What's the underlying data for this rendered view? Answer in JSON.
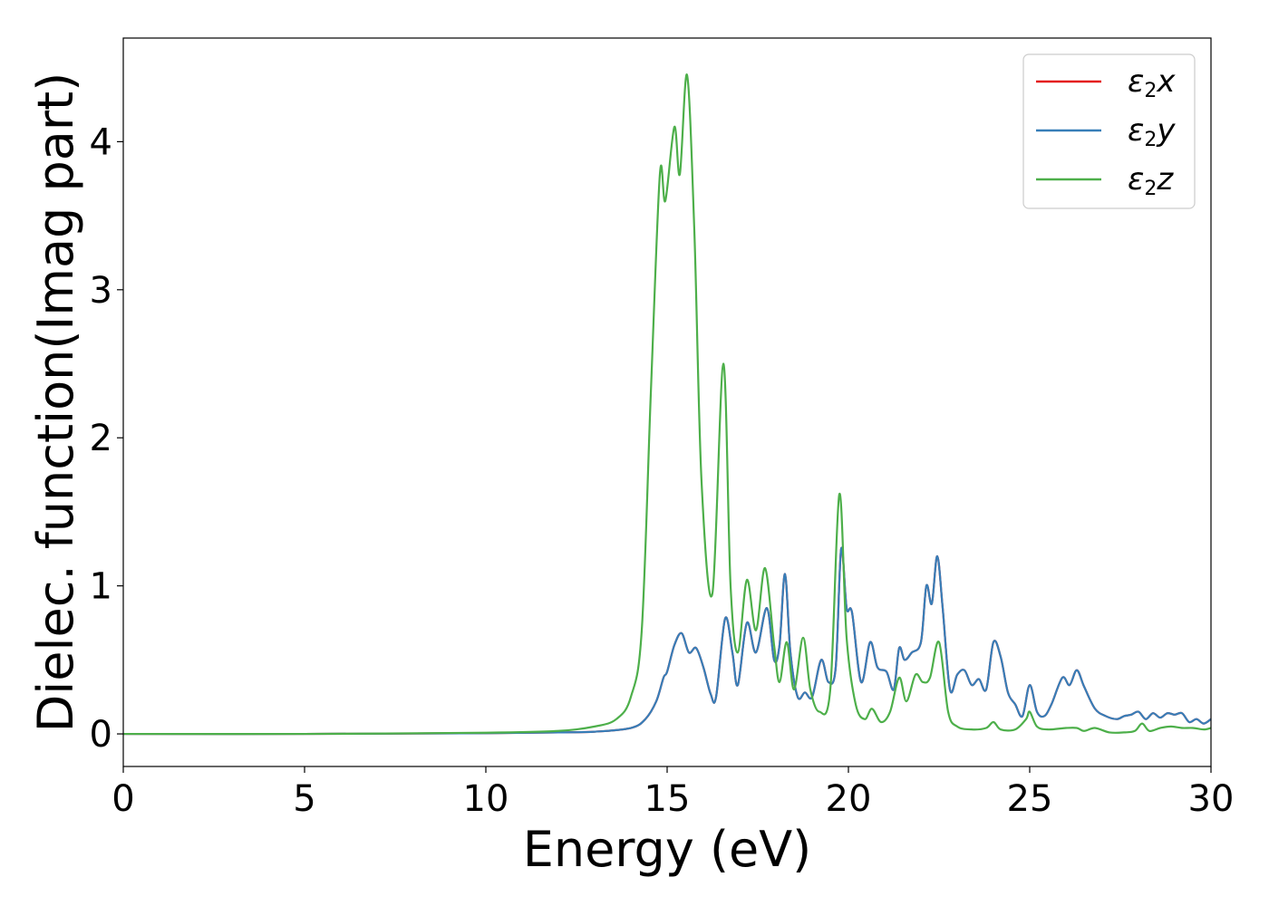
{
  "chart_data": {
    "type": "line",
    "xlabel": "Energy (eV)",
    "ylabel": "Dielec. function(Imag part)",
    "xlim": [
      0,
      30
    ],
    "ylim": [
      -0.22,
      4.7
    ],
    "xticks": [
      0,
      5,
      10,
      15,
      20,
      25,
      30
    ],
    "yticks": [
      0,
      1,
      2,
      3,
      4
    ],
    "grid": false,
    "legend_position": "top-right",
    "series": [
      {
        "name": "ε2x",
        "legend_main": "ε",
        "legend_sub": "2",
        "legend_var": "x",
        "color": "#e41a1c",
        "x": [
          0,
          5,
          10,
          12,
          13,
          14,
          14.4,
          14.7,
          14.9,
          15.0,
          15.2,
          15.4,
          15.6,
          15.8,
          16.0,
          16.2,
          16.35,
          16.6,
          16.8,
          16.95,
          17.2,
          17.45,
          17.75,
          17.95,
          18.1,
          18.25,
          18.4,
          18.6,
          18.8,
          19.0,
          19.25,
          19.45,
          19.65,
          19.8,
          19.95,
          20.1,
          20.35,
          20.6,
          20.8,
          21.05,
          21.25,
          21.4,
          21.55,
          21.75,
          22.0,
          22.15,
          22.3,
          22.45,
          22.6,
          22.8,
          23.0,
          23.2,
          23.4,
          23.6,
          23.8,
          24.0,
          24.2,
          24.4,
          24.6,
          24.8,
          25.0,
          25.2,
          25.4,
          25.6,
          25.9,
          26.1,
          26.3,
          26.5,
          26.8,
          27.1,
          27.4,
          27.6,
          27.8,
          28.0,
          28.2,
          28.4,
          28.6,
          28.8,
          29.0,
          29.2,
          29.4,
          29.6,
          29.8,
          30.0
        ],
        "y": [
          0.0,
          0.0,
          0.005,
          0.01,
          0.015,
          0.04,
          0.1,
          0.22,
          0.38,
          0.42,
          0.6,
          0.68,
          0.55,
          0.58,
          0.45,
          0.27,
          0.25,
          0.78,
          0.55,
          0.33,
          0.75,
          0.55,
          0.85,
          0.5,
          0.6,
          1.08,
          0.55,
          0.25,
          0.28,
          0.25,
          0.5,
          0.35,
          0.45,
          1.25,
          0.85,
          0.82,
          0.35,
          0.62,
          0.45,
          0.42,
          0.3,
          0.58,
          0.5,
          0.55,
          0.62,
          1.0,
          0.88,
          1.2,
          0.85,
          0.3,
          0.4,
          0.43,
          0.33,
          0.37,
          0.3,
          0.62,
          0.52,
          0.28,
          0.2,
          0.12,
          0.33,
          0.15,
          0.12,
          0.2,
          0.38,
          0.33,
          0.43,
          0.32,
          0.17,
          0.12,
          0.1,
          0.12,
          0.13,
          0.15,
          0.1,
          0.14,
          0.11,
          0.14,
          0.13,
          0.14,
          0.08,
          0.1,
          0.07,
          0.1
        ]
      },
      {
        "name": "ε2y",
        "legend_main": "ε",
        "legend_sub": "2",
        "legend_var": "y",
        "color": "#377eb8",
        "x": [
          0,
          5,
          10,
          12,
          13,
          14,
          14.4,
          14.7,
          14.9,
          15.0,
          15.2,
          15.4,
          15.6,
          15.8,
          16.0,
          16.2,
          16.35,
          16.6,
          16.8,
          16.95,
          17.2,
          17.45,
          17.75,
          17.95,
          18.1,
          18.25,
          18.4,
          18.6,
          18.8,
          19.0,
          19.25,
          19.45,
          19.65,
          19.8,
          19.95,
          20.1,
          20.35,
          20.6,
          20.8,
          21.05,
          21.25,
          21.4,
          21.55,
          21.75,
          22.0,
          22.15,
          22.3,
          22.45,
          22.6,
          22.8,
          23.0,
          23.2,
          23.4,
          23.6,
          23.8,
          24.0,
          24.2,
          24.4,
          24.6,
          24.8,
          25.0,
          25.2,
          25.4,
          25.6,
          25.9,
          26.1,
          26.3,
          26.5,
          26.8,
          27.1,
          27.4,
          27.6,
          27.8,
          28.0,
          28.2,
          28.4,
          28.6,
          28.8,
          29.0,
          29.2,
          29.4,
          29.6,
          29.8,
          30.0
        ],
        "y": [
          0.0,
          0.0,
          0.005,
          0.01,
          0.015,
          0.04,
          0.1,
          0.22,
          0.38,
          0.42,
          0.6,
          0.68,
          0.55,
          0.58,
          0.45,
          0.27,
          0.25,
          0.78,
          0.55,
          0.33,
          0.75,
          0.55,
          0.85,
          0.5,
          0.6,
          1.08,
          0.55,
          0.25,
          0.28,
          0.25,
          0.5,
          0.35,
          0.45,
          1.25,
          0.85,
          0.82,
          0.35,
          0.62,
          0.45,
          0.42,
          0.3,
          0.58,
          0.5,
          0.55,
          0.62,
          1.0,
          0.88,
          1.2,
          0.85,
          0.3,
          0.4,
          0.43,
          0.33,
          0.37,
          0.3,
          0.62,
          0.52,
          0.28,
          0.2,
          0.12,
          0.33,
          0.15,
          0.12,
          0.2,
          0.38,
          0.33,
          0.43,
          0.32,
          0.17,
          0.12,
          0.1,
          0.12,
          0.13,
          0.15,
          0.1,
          0.14,
          0.11,
          0.14,
          0.13,
          0.14,
          0.08,
          0.1,
          0.07,
          0.1
        ]
      },
      {
        "name": "ε2z",
        "legend_main": "ε",
        "legend_sub": "2",
        "legend_var": "z",
        "color": "#4daf4a",
        "x": [
          0,
          5,
          10,
          12,
          13,
          13.6,
          14.0,
          14.3,
          14.55,
          14.8,
          14.95,
          15.2,
          15.35,
          15.55,
          15.75,
          15.95,
          16.25,
          16.55,
          16.75,
          16.95,
          17.2,
          17.45,
          17.7,
          17.95,
          18.1,
          18.3,
          18.5,
          18.75,
          18.95,
          19.2,
          19.5,
          19.75,
          19.95,
          20.2,
          20.45,
          20.65,
          20.9,
          21.15,
          21.4,
          21.6,
          21.85,
          22.05,
          22.25,
          22.5,
          22.75,
          23.0,
          23.4,
          23.8,
          24.0,
          24.2,
          24.6,
          24.9,
          25.0,
          25.2,
          25.5,
          26.0,
          26.3,
          26.5,
          26.8,
          27.2,
          27.6,
          27.9,
          28.1,
          28.3,
          28.6,
          28.9,
          29.2,
          29.5,
          29.8,
          30.0
        ],
        "y": [
          0.0,
          0.0,
          0.008,
          0.02,
          0.05,
          0.1,
          0.25,
          0.7,
          2.3,
          3.78,
          3.6,
          4.1,
          3.78,
          4.45,
          3.4,
          1.7,
          0.95,
          2.5,
          1.0,
          0.55,
          1.04,
          0.7,
          1.12,
          0.6,
          0.35,
          0.62,
          0.3,
          0.65,
          0.3,
          0.15,
          0.3,
          1.62,
          0.65,
          0.2,
          0.1,
          0.17,
          0.08,
          0.15,
          0.38,
          0.22,
          0.4,
          0.35,
          0.38,
          0.62,
          0.15,
          0.05,
          0.03,
          0.04,
          0.08,
          0.03,
          0.03,
          0.1,
          0.15,
          0.05,
          0.03,
          0.04,
          0.04,
          0.02,
          0.04,
          0.01,
          0.01,
          0.02,
          0.07,
          0.02,
          0.04,
          0.05,
          0.04,
          0.04,
          0.03,
          0.04
        ]
      }
    ]
  }
}
